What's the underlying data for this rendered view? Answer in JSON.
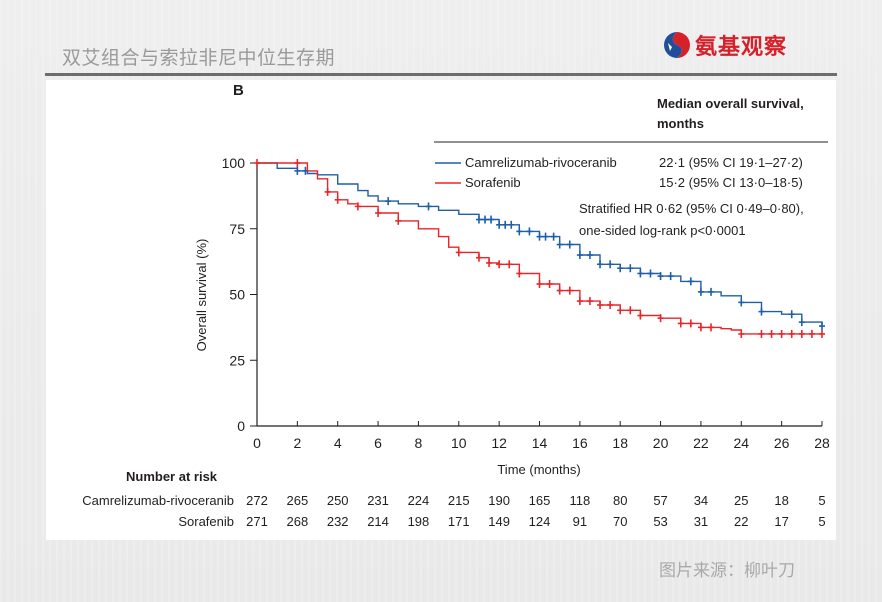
{
  "slide": {
    "title": "双艾组合与索拉非尼中位生存期",
    "brand_name": "氨基观察",
    "source_text": "图片来源：柳叶刀",
    "brand_color": "#d6202a",
    "brand_logo_icon": "swirl-logo-icon"
  },
  "chart_data": {
    "type": "line",
    "subtype": "kaplan-meier",
    "panel_label": "B",
    "title": "",
    "xlabel": "Time (months)",
    "ylabel": "Overall survival (%)",
    "xlim": [
      0,
      28
    ],
    "ylim": [
      0,
      100
    ],
    "x_ticks": [
      0,
      2,
      4,
      6,
      8,
      10,
      12,
      14,
      16,
      18,
      20,
      22,
      24,
      26,
      28
    ],
    "y_ticks": [
      0,
      25,
      50,
      75,
      100
    ],
    "grid": false,
    "legend_placement": "top-right",
    "legend_header": [
      "Median overall survival,",
      "months"
    ],
    "series": [
      {
        "name": "Camrelizumab-rivoceranib",
        "color": "#1f5fa8",
        "median": "22·1 (95% CI 19·1–27·2)",
        "x": [
          0,
          1,
          2,
          2.5,
          3,
          4,
          5,
          5.5,
          6,
          7,
          8,
          9,
          10,
          11,
          12,
          13,
          14,
          15,
          16,
          17,
          18,
          19,
          20,
          21,
          22,
          23,
          24,
          25,
          26,
          27,
          28
        ],
        "y": [
          100,
          98,
          97,
          96,
          95.5,
          92,
          89.5,
          87.5,
          85.5,
          84.5,
          83.5,
          82,
          80.5,
          78.5,
          76.5,
          74,
          72,
          69,
          65,
          61.5,
          60,
          58,
          57,
          55,
          51,
          49.5,
          47,
          43.5,
          42.5,
          39.5,
          38
        ],
        "censor_x": [
          2,
          2.4,
          6.5,
          8.5,
          11,
          11.3,
          11.6,
          12,
          12.3,
          12.6,
          13,
          13.5,
          14,
          14.3,
          14.7,
          15,
          15.5,
          16,
          16.5,
          17,
          17.5,
          18,
          18.5,
          19,
          19.5,
          20,
          20.5,
          21.5,
          22,
          22.5,
          24,
          25,
          26.5,
          27,
          28
        ]
      },
      {
        "name": "Sorafenib",
        "color": "#e8262a",
        "median": "15·2 (95% CI 13·0–18·5)",
        "x": [
          0,
          2,
          2.5,
          3,
          3.5,
          4,
          4.5,
          5,
          6,
          7,
          8,
          9,
          9.5,
          10,
          11,
          11.5,
          12,
          13,
          14,
          15,
          16,
          17,
          18,
          19,
          20,
          21,
          22,
          23,
          23.5,
          24,
          25,
          26,
          27,
          28
        ],
        "y": [
          100,
          100,
          97,
          94,
          89,
          86,
          84.5,
          83.5,
          81,
          78,
          75,
          72,
          68,
          66,
          64,
          62,
          61.5,
          58,
          54,
          51.5,
          47.5,
          46,
          44,
          42,
          41,
          39,
          37.5,
          37,
          36.5,
          35,
          35,
          35,
          35,
          35
        ],
        "censor_x": [
          0,
          2,
          3.5,
          4,
          5,
          6,
          7,
          10,
          11,
          11.5,
          12,
          12.5,
          13,
          14,
          14.5,
          15,
          15.5,
          16,
          16.5,
          17,
          17.5,
          18,
          18.5,
          19,
          20,
          21,
          21.5,
          22,
          22.5,
          24,
          25,
          25.5,
          26,
          26.5,
          27,
          27.5,
          28
        ]
      }
    ],
    "annotation": [
      "Stratified HR 0·62 (95% CI 0·49–0·80),",
      "one-sided log-rank p<0·0001"
    ],
    "number_at_risk": {
      "title": "Number at risk",
      "times": [
        0,
        2,
        4,
        6,
        8,
        10,
        12,
        14,
        16,
        18,
        20,
        22,
        24,
        26,
        28
      ],
      "rows": [
        {
          "label": "Camrelizumab-rivoceranib",
          "values": [
            272,
            265,
            250,
            231,
            224,
            215,
            190,
            165,
            118,
            80,
            57,
            34,
            25,
            18,
            5
          ]
        },
        {
          "label": "Sorafenib",
          "values": [
            271,
            268,
            232,
            214,
            198,
            171,
            149,
            124,
            91,
            70,
            53,
            31,
            22,
            17,
            5
          ]
        }
      ]
    }
  }
}
